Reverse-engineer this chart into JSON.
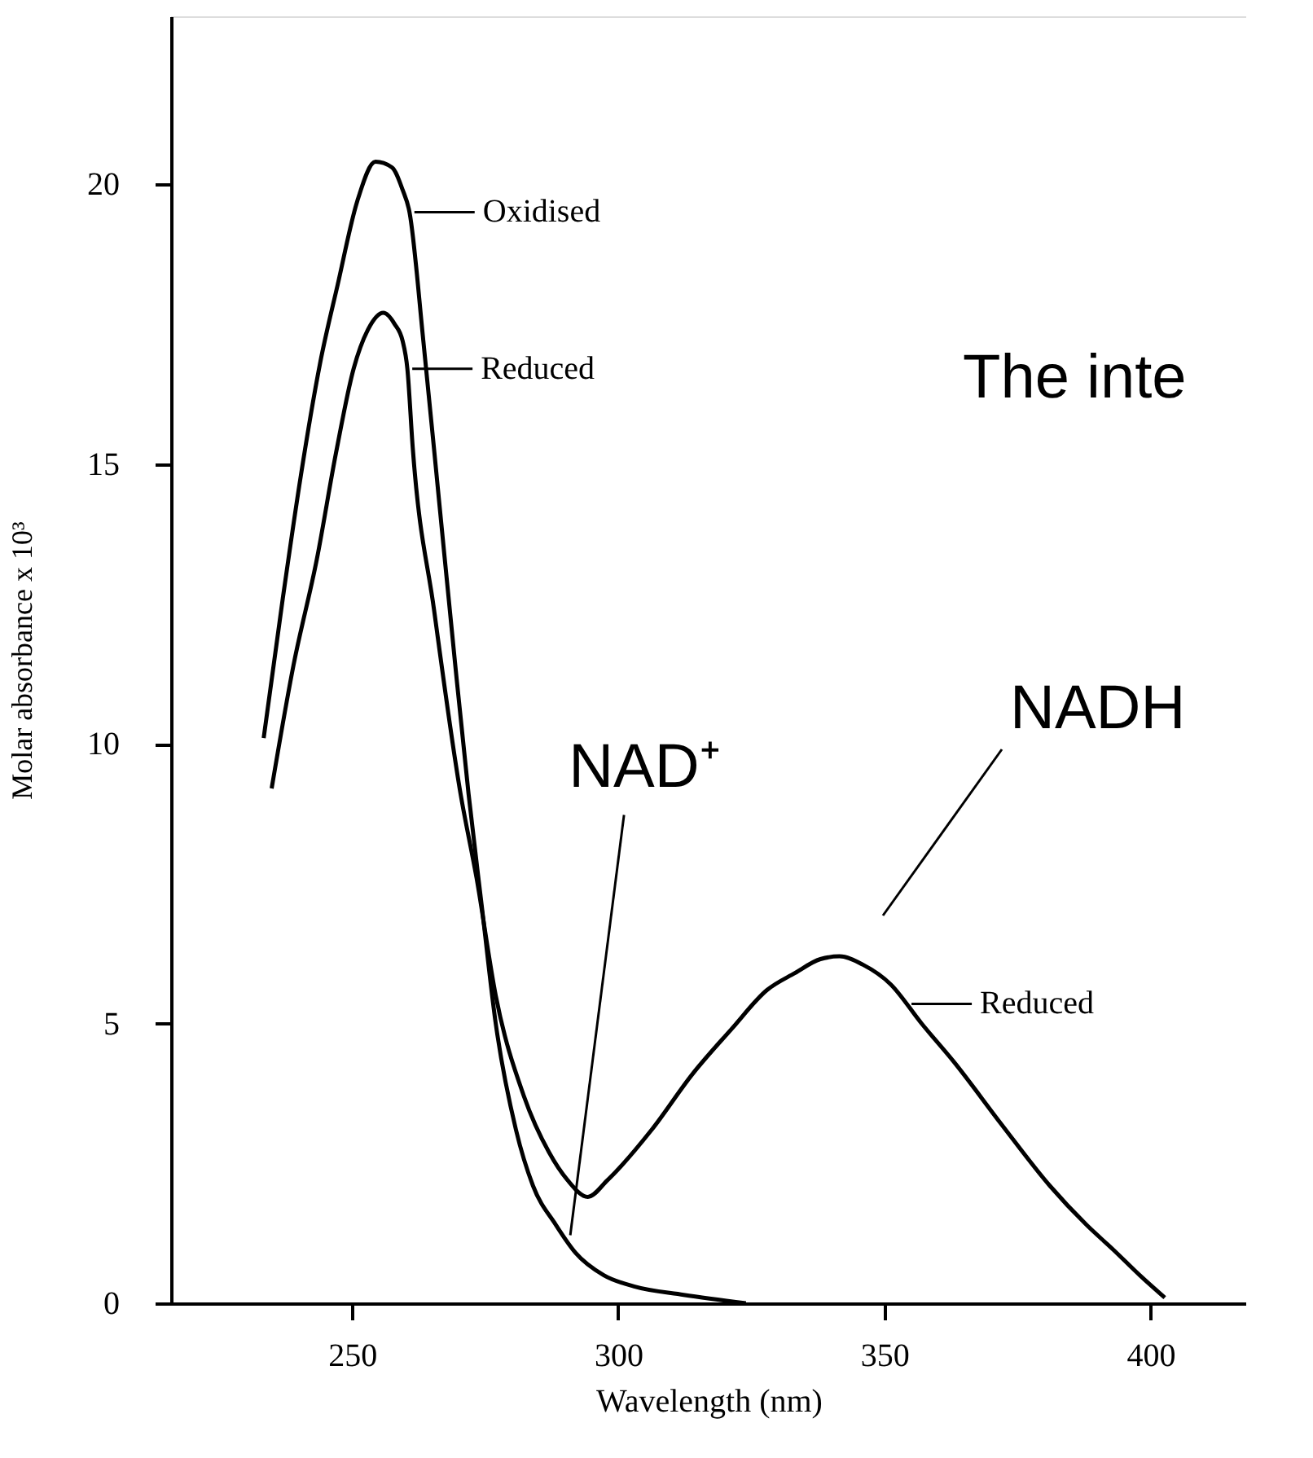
{
  "chart_data": {
    "type": "line",
    "xlabel": "Wavelength (nm)",
    "ylabel": "Molar absorbance x 10³",
    "xlim": [
      216,
      418
    ],
    "xticks": [
      250,
      300,
      350,
      400
    ],
    "ylim": [
      0,
      23
    ],
    "yticks": [
      0,
      5,
      10,
      15,
      20
    ],
    "grid": false,
    "marker": "none",
    "line_style": "solid",
    "series": [
      {
        "color": "#000000",
        "x": [
          233.4,
          237,
          240.4,
          244,
          247.3,
          251,
          254.4,
          257.5,
          259.5,
          260.8,
          263.4,
          266.4,
          269.4,
          271.9,
          274.5,
          277,
          280.8,
          284,
          288.3,
          292,
          297.3,
          303,
          312.3,
          324
        ],
        "values": [
          10.1,
          12.6,
          14.8,
          16.8,
          18.2,
          19.7,
          20.4,
          20.3,
          19.9,
          19.5,
          17.2,
          14.3,
          11.4,
          9.1,
          7.0,
          5.0,
          3.1,
          2.1,
          1.4,
          0.9,
          0.5,
          0.3,
          0.15,
          0
        ]
      },
      {
        "color": "#000000",
        "x": [
          234.9,
          239,
          243.4,
          247,
          250.3,
          253,
          255.9,
          258,
          259.5,
          260.4,
          261.4,
          265.4,
          270.4,
          273.4,
          277,
          282.3,
          287,
          290.5,
          294.3,
          298,
          306.3,
          314,
          321.3,
          328,
          333.2,
          338,
          341.6,
          346,
          351.2,
          357,
          363.2,
          372,
          381.1,
          388,
          393.1,
          398,
          402.7
        ],
        "values": [
          9.2,
          11.4,
          13.3,
          15.2,
          16.7,
          17.4,
          17.7,
          17.5,
          17.2,
          16.7,
          15.3,
          12.4,
          9.1,
          7.6,
          5.5,
          3.7,
          2.7,
          2.2,
          1.9,
          2.2,
          3.1,
          4.1,
          4.9,
          5.6,
          5.9,
          6.15,
          6.2,
          6.05,
          5.7,
          5.0,
          4.3,
          3.2,
          2.1,
          1.4,
          0.95,
          0.5,
          0.1
        ]
      }
    ],
    "annotations": [
      {
        "text": "Oxidised",
        "x": 260.8,
        "y": 19.5
      },
      {
        "text": "Reduced",
        "x": 260.4,
        "y": 16.7
      },
      {
        "text": "Reduced",
        "x": 354.2,
        "y": 5.35
      },
      {
        "text": "NAD⁺",
        "x": 290.7,
        "y": 1.1
      },
      "NADH",
      "The inte"
    ]
  }
}
